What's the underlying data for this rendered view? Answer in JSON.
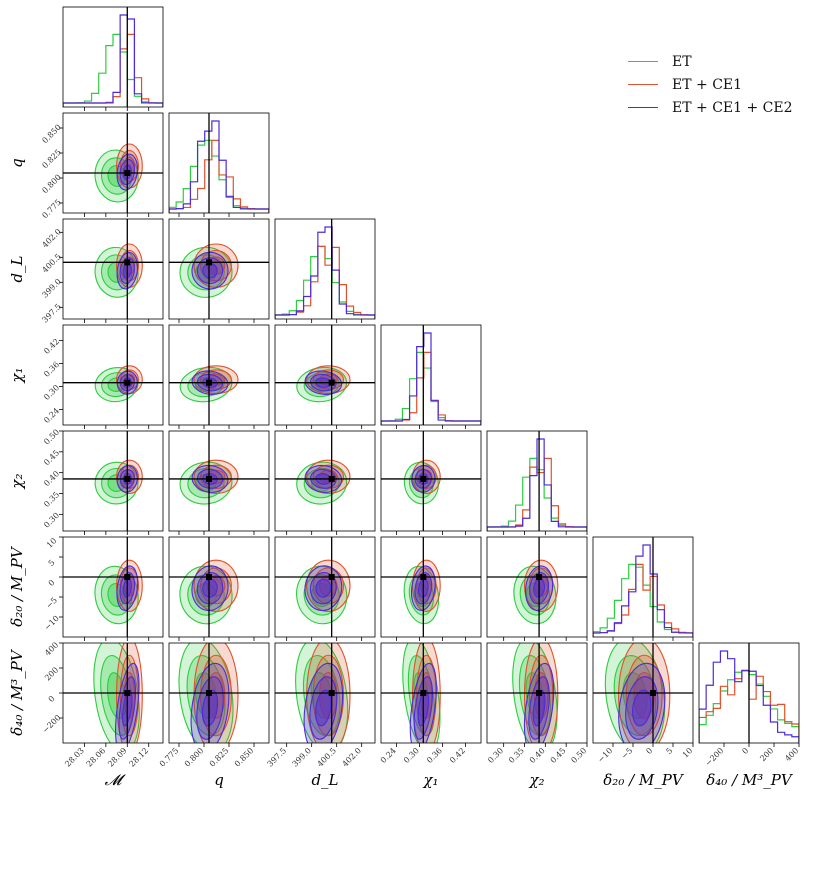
{
  "colors": {
    "ET": "#2ecc40",
    "ET+CE1": "#e0522b",
    "ET+CE1+CE2": "#4d2bd9"
  },
  "legend": {
    "position": "top-right",
    "entries": [
      {
        "label": "ET",
        "color": "#2ecc40"
      },
      {
        "label": "ET + CE1",
        "color": "#e0522b"
      },
      {
        "label": "ET + CE1 + CE2",
        "color": "#4d2bd9"
      }
    ]
  },
  "chart_data": {
    "type": "corner",
    "parameters": [
      {
        "label": "𝓜",
        "truth": 28.09,
        "range": [
          28.0,
          28.14
        ],
        "ticks": [
          "28.03",
          "28.06",
          "28.09",
          "28.12"
        ],
        "tickvals": [
          28.03,
          28.06,
          28.09,
          28.12
        ]
      },
      {
        "label": "q",
        "truth": 0.805,
        "range": [
          0.765,
          0.865
        ],
        "ticks": [
          "0.775",
          "0.800",
          "0.825",
          "0.850"
        ],
        "tickvals": [
          0.775,
          0.8,
          0.825,
          0.85
        ]
      },
      {
        "label": "d_L",
        "truth": 400.2,
        "range": [
          396.8,
          402.8
        ],
        "ticks": [
          "397.5",
          "399.0",
          "400.5",
          "402.0"
        ],
        "tickvals": [
          397.5,
          399.0,
          400.5,
          402.0
        ]
      },
      {
        "label": "χ₁",
        "truth": 0.31,
        "range": [
          0.2,
          0.46
        ],
        "ticks": [
          "0.24",
          "0.30",
          "0.36",
          "0.42"
        ],
        "tickvals": [
          0.24,
          0.3,
          0.36,
          0.42
        ]
      },
      {
        "label": "χ₂",
        "truth": 0.385,
        "range": [
          0.26,
          0.5
        ],
        "ticks": [
          "0.30",
          "0.35",
          "0.40",
          "0.45",
          "0.50"
        ],
        "tickvals": [
          0.3,
          0.35,
          0.4,
          0.45,
          0.5
        ]
      },
      {
        "label": "δ₂₀ / M_PV",
        "truth": 0,
        "range": [
          -15,
          10
        ],
        "ticks": [
          "−10",
          "−5",
          "0",
          "5",
          "10"
        ],
        "tickvals": [
          -10,
          -5,
          0,
          5,
          10
        ]
      },
      {
        "label": "δ₄₀ / M³_PV",
        "truth": 0,
        "range": [
          -400,
          400
        ],
        "ticks": [
          "−200",
          "0",
          "200",
          "400"
        ],
        "tickvals": [
          -200,
          0,
          200,
          400
        ]
      }
    ],
    "series": [
      {
        "name": "ET",
        "color": "#2ecc40",
        "means": [
          28.075,
          0.802,
          399.6,
          0.305,
          0.375,
          -4.5,
          -20
        ],
        "sigmas": [
          0.015,
          0.013,
          0.75,
          0.022,
          0.025,
          3.6,
          230
        ]
      },
      {
        "name": "ET + CE1",
        "color": "#e0522b",
        "means": [
          28.093,
          0.812,
          400.0,
          0.318,
          0.39,
          -2.2,
          -20
        ],
        "sigmas": [
          0.009,
          0.011,
          0.65,
          0.018,
          0.02,
          3.2,
          230
        ]
      },
      {
        "name": "ET + CE1 + CE2",
        "color": "#4d2bd9",
        "means": [
          28.09,
          0.806,
          399.7,
          0.31,
          0.385,
          -2.8,
          -120
        ],
        "sigmas": [
          0.007,
          0.009,
          0.55,
          0.015,
          0.016,
          2.8,
          180
        ]
      }
    ]
  }
}
